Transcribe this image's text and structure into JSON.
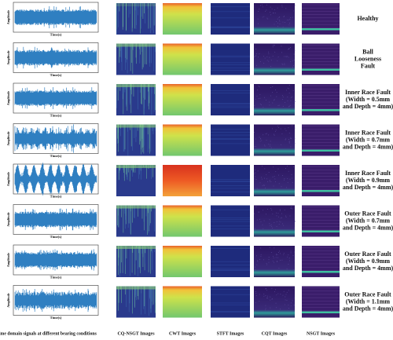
{
  "rows": [
    {
      "condition": [
        "Healthy"
      ],
      "y_axis_label": "Amplitude",
      "x_axis_label": "Time(s)"
    },
    {
      "condition": [
        "Ball",
        "Looseness",
        "Fault"
      ],
      "y_axis_label": "Amplitude",
      "x_axis_label": "Time(s)"
    },
    {
      "condition": [
        "Inner Race Fault",
        "(Width = 0.5mm",
        "and Depth = 4mm)"
      ],
      "y_axis_label": "Amplitude",
      "x_axis_label": "Time(s)"
    },
    {
      "condition": [
        "Inner Race Fault",
        "(Width = 0.7mm",
        "and Depth = 4mm)"
      ],
      "y_axis_label": "Amplitude",
      "x_axis_label": "Time(s)"
    },
    {
      "condition": [
        "Inner Race Fault",
        "(Width = 0.9mm",
        "and Depth = 4mm)"
      ],
      "y_axis_label": "Amplitude",
      "x_axis_label": "Time(s)"
    },
    {
      "condition": [
        "Outer Race Fault",
        "(Width = 0.7mm",
        "and Depth = 4mm)"
      ],
      "y_axis_label": "Amplitude",
      "x_axis_label": "Time(s)"
    },
    {
      "condition": [
        "Outer Race Fault",
        "(Width = 0.9mm",
        "and Depth = 4mm)"
      ],
      "y_axis_label": "Amplitude",
      "x_axis_label": "Time(s)"
    },
    {
      "condition": [
        "Outer Race Fault",
        "(Width = 1.1mm",
        "and Depth = 4mm)"
      ],
      "y_axis_label": "Amplitude",
      "x_axis_label": "Time(s)"
    }
  ],
  "columns": [
    "Time domain signals at different bearing conditions",
    "CQ-NSGT Images",
    "CWT Images",
    "STFT Images",
    "CQT Images",
    "NSGT Images"
  ]
}
